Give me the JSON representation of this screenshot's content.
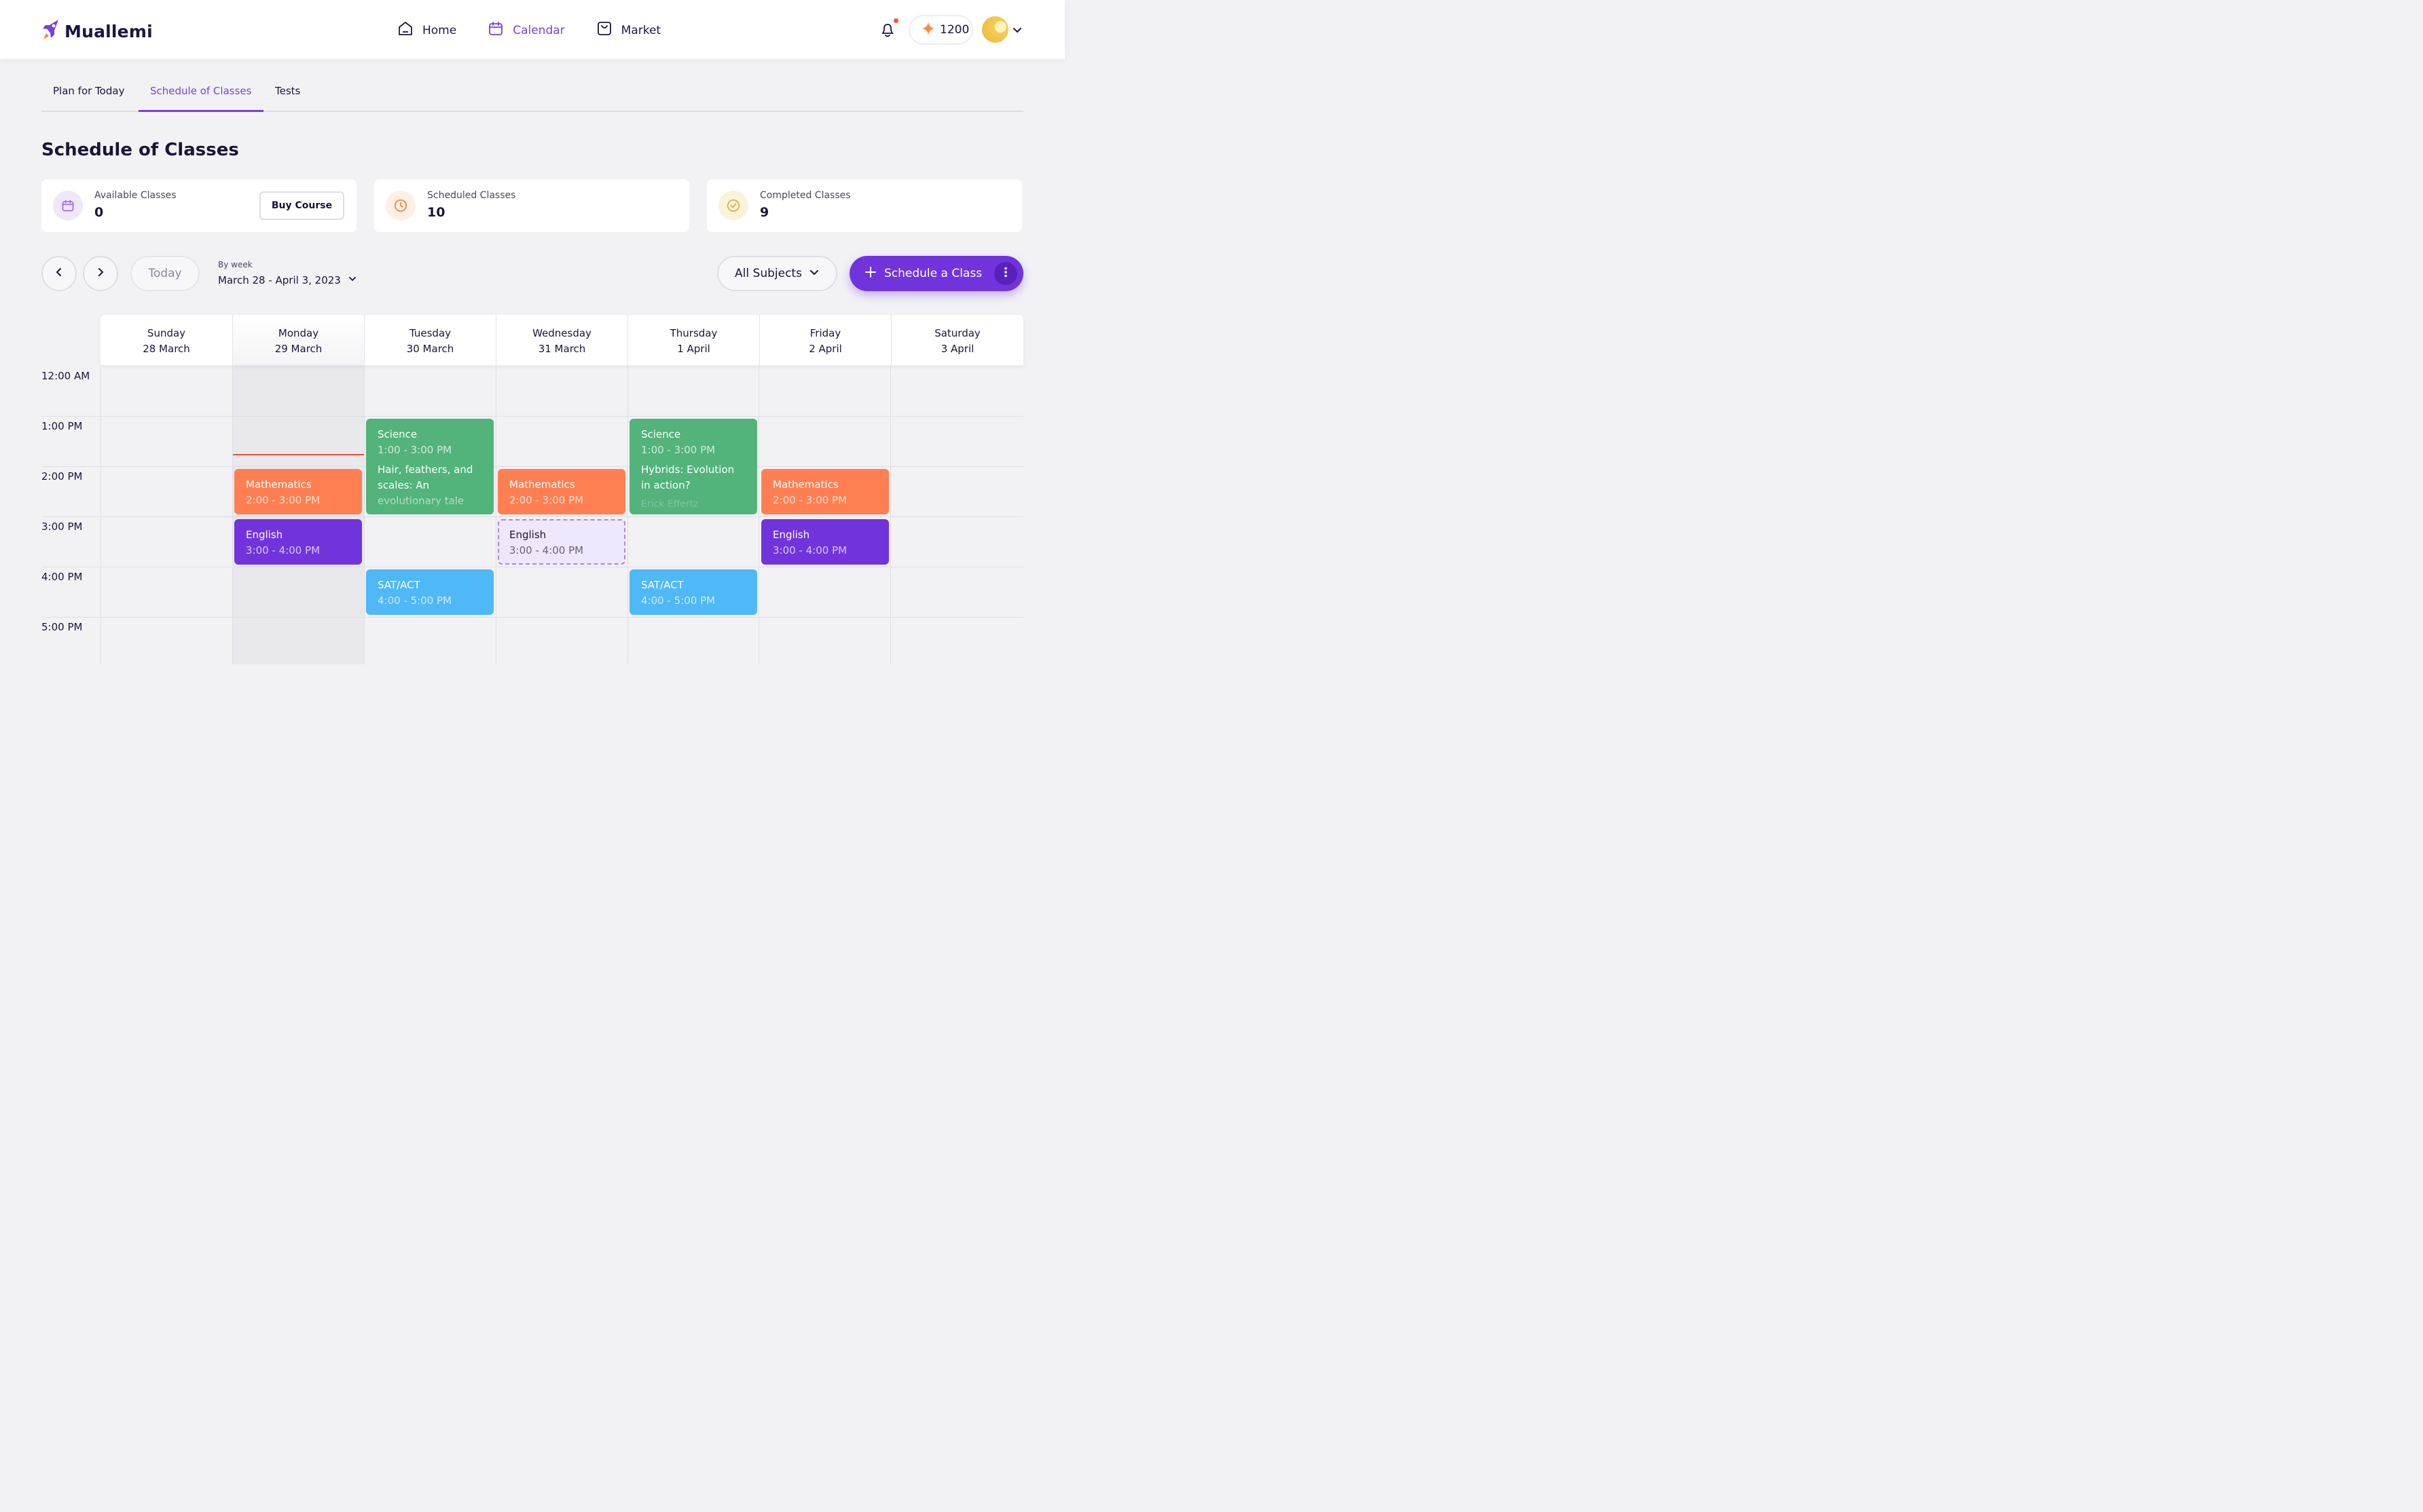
{
  "app": {
    "name": "Muallemi"
  },
  "nav": {
    "home": "Home",
    "calendar": "Calendar",
    "market": "Market"
  },
  "header": {
    "points": "1200"
  },
  "tabs": [
    "Plan for Today",
    "Schedule of Classes",
    "Tests"
  ],
  "page": {
    "title": "Schedule of Classes"
  },
  "stats": {
    "available": {
      "label": "Available Classes",
      "value": "0",
      "button": "Buy Course"
    },
    "scheduled": {
      "label": "Scheduled Classes",
      "value": "10"
    },
    "completed": {
      "label": "Completed Classes",
      "value": "9"
    }
  },
  "toolbar": {
    "today": "Today",
    "week_caption": "By week",
    "week_range": "March 28 - April 3, 2023",
    "subjects": "All Subjects",
    "schedule": "Schedule a Class"
  },
  "days": [
    {
      "name": "Sunday",
      "date": "28 March"
    },
    {
      "name": "Monday",
      "date": "29 March"
    },
    {
      "name": "Tuesday",
      "date": "30 March"
    },
    {
      "name": "Wednesday",
      "date": "31 March"
    },
    {
      "name": "Thursday",
      "date": "1 April"
    },
    {
      "name": "Friday",
      "date": "2 April"
    },
    {
      "name": "Saturday",
      "date": "3 April"
    }
  ],
  "times": [
    "12:00 AM",
    "1:00 PM",
    "2:00 PM",
    "3:00 PM",
    "4:00 PM",
    "5:00 PM"
  ],
  "events": {
    "tue_science": {
      "title": "Science",
      "time": "1:00 - 3:00 PM",
      "desc": "Hair, feathers, and scales: An evolutionary tale"
    },
    "thu_science": {
      "title": "Science",
      "time": "1:00 - 3:00 PM",
      "desc": "Hybrids: Evolution in action?",
      "teacher": "Erick Effertz"
    },
    "mon_math": {
      "title": "Mathematics",
      "time": "2:00 - 3:00 PM"
    },
    "wed_math": {
      "title": "Mathematics",
      "time": "2:00 - 3:00 PM"
    },
    "fri_math": {
      "title": "Mathematics",
      "time": "2:00 - 3:00 PM"
    },
    "mon_english": {
      "title": "English",
      "time": "3:00 - 4:00 PM"
    },
    "wed_english": {
      "title": "English",
      "time": "3:00 - 4:00 PM"
    },
    "fri_english": {
      "title": "English",
      "time": "3:00 - 4:00 PM"
    },
    "tue_sat": {
      "title": "SAT/ACT",
      "time": "4:00 - 5:00 PM"
    },
    "thu_sat": {
      "title": "SAT/ACT",
      "time": "4:00 - 5:00 PM"
    }
  },
  "colors": {
    "accent": "#7134dc",
    "science": "#52b37b",
    "mathematics": "#ff7f52",
    "english": "#7134dc",
    "sat_act": "#4fb8f6",
    "current_time_line": "#ef4d3c"
  },
  "icons": {
    "logo": "rocket-icon",
    "home": "home-icon",
    "calendar": "calendar-icon",
    "market": "shopping-bag-icon",
    "notifications": "bell-icon",
    "points": "sparkle-icon",
    "prev": "chevron-left-icon",
    "next": "chevron-right-icon",
    "more": "kebab-icon"
  }
}
